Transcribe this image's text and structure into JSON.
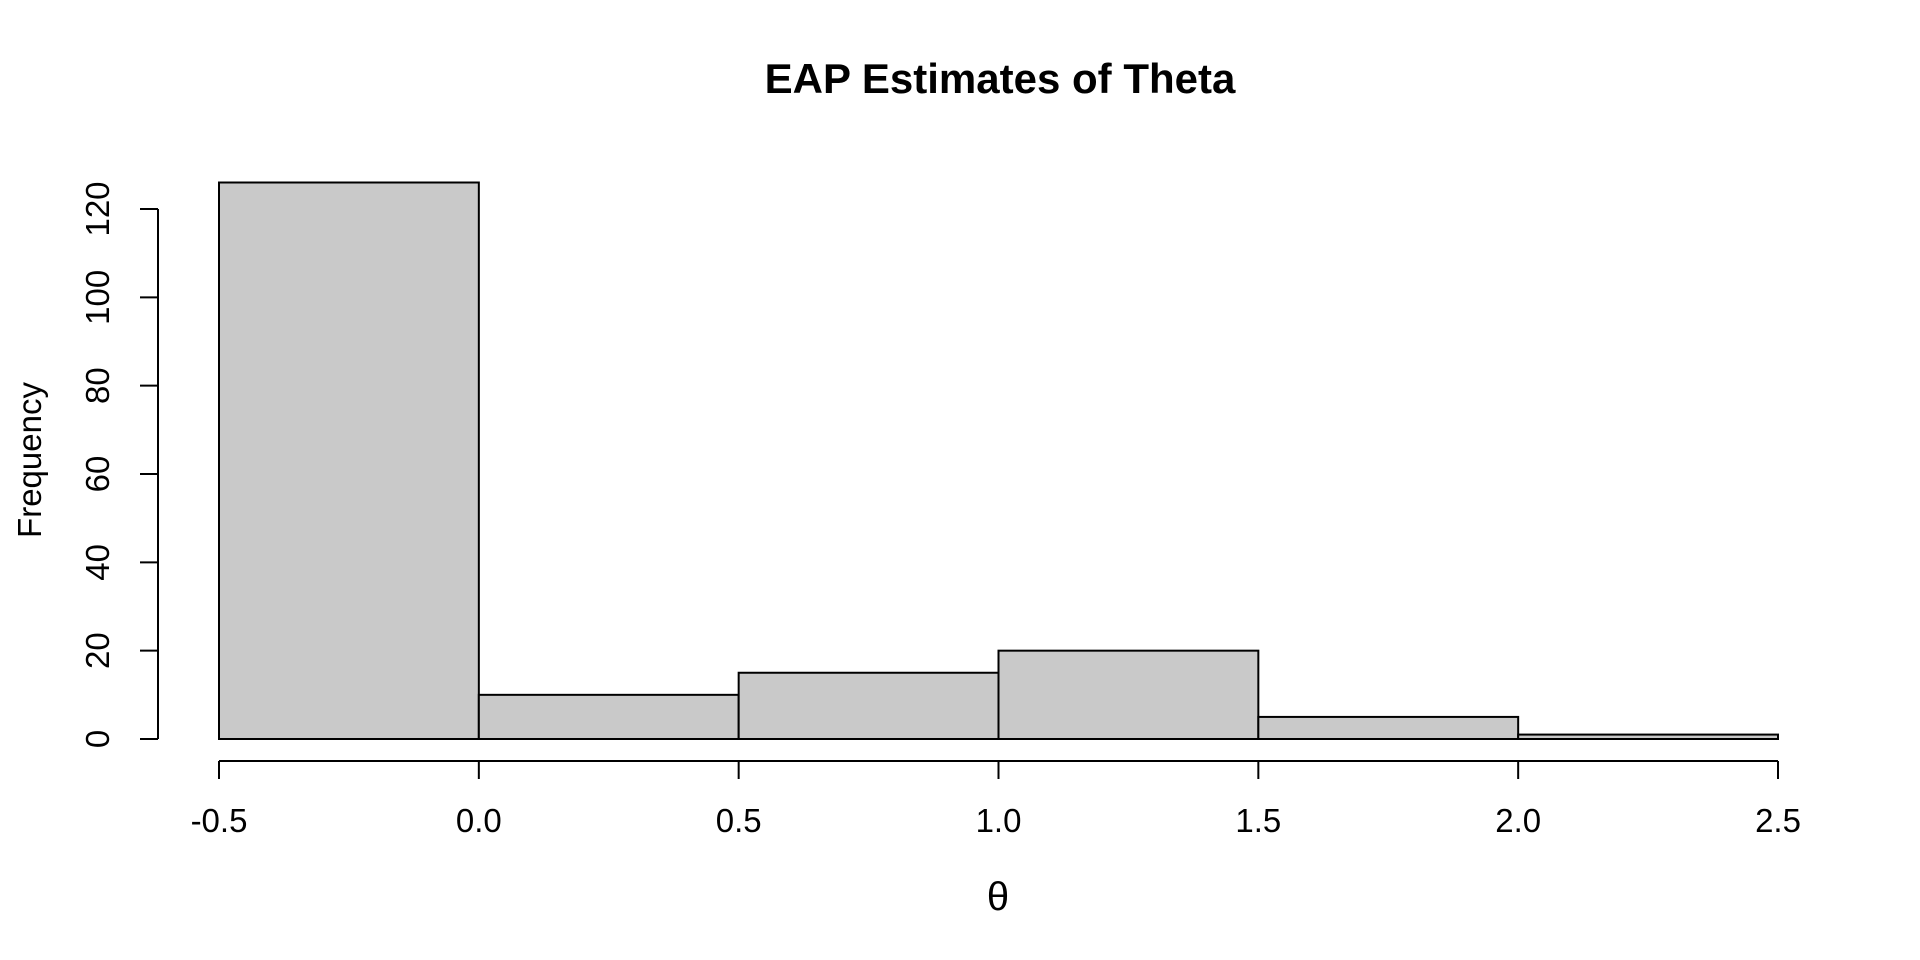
{
  "figure": {
    "background": "#ffffff"
  },
  "chart_data": {
    "type": "bar",
    "subtype": "histogram",
    "title": "EAP Estimates of Theta",
    "xlabel": "θ",
    "ylabel": "Frequency",
    "bin_edges": [
      -0.5,
      0.0,
      0.5,
      1.0,
      1.5,
      2.0,
      2.5
    ],
    "counts": [
      126,
      10,
      15,
      20,
      5,
      1
    ],
    "xlim": [
      -0.5,
      2.5
    ],
    "ylim": [
      0,
      120
    ],
    "x_ticks": {
      "values": [
        -0.5,
        0.0,
        0.5,
        1.0,
        1.5,
        2.0,
        2.5
      ],
      "labels": [
        "-0.5",
        "0.0",
        "0.5",
        "1.0",
        "1.5",
        "2.0",
        "2.5"
      ]
    },
    "y_ticks": {
      "values": [
        0,
        20,
        40,
        60,
        80,
        100,
        120
      ],
      "labels": [
        "0",
        "20",
        "40",
        "60",
        "80",
        "100",
        "120"
      ]
    },
    "grid": false,
    "legend": "none",
    "bar_fill": "#c9c9c9",
    "bar_stroke": "#000000",
    "axis_color": "#000000"
  }
}
